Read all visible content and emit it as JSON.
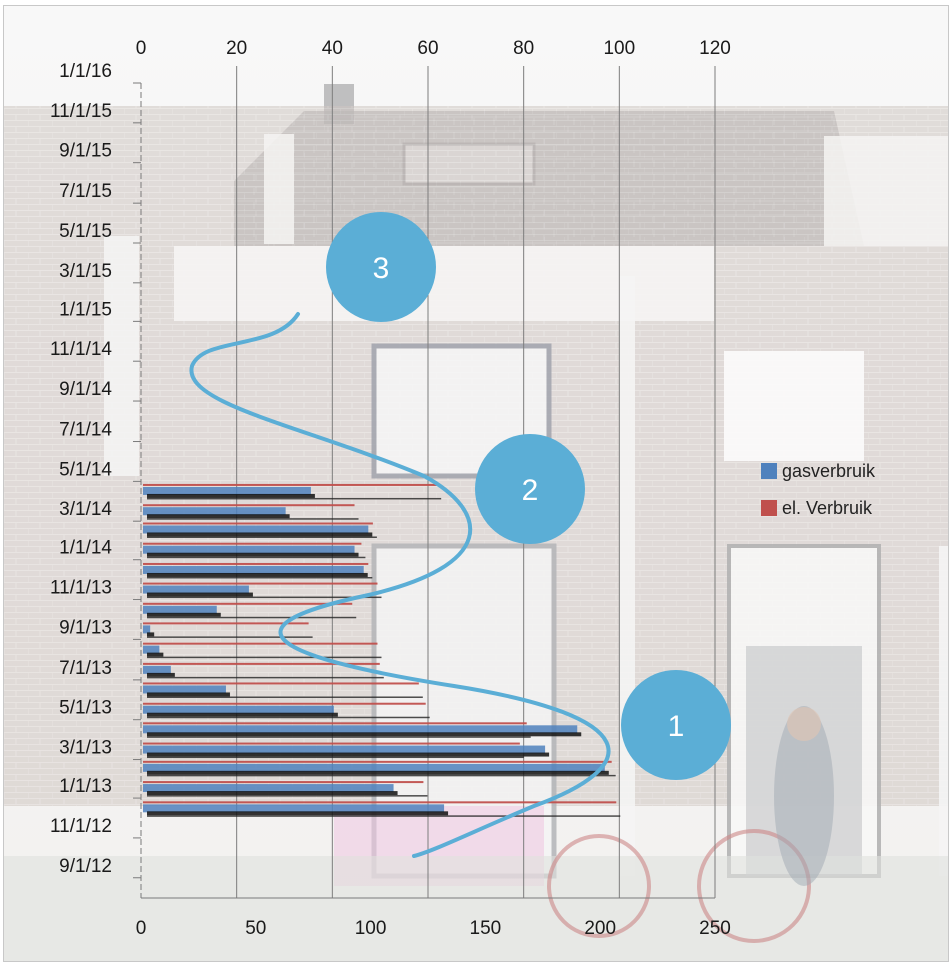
{
  "chart_data": {
    "type": "bar",
    "orientation": "horizontal",
    "background": "photo of a brick row house with a bicycle (faded)",
    "y_axis": {
      "type": "date",
      "tick_labels": [
        "1/1/16",
        "11/1/15",
        "9/1/15",
        "7/1/15",
        "5/1/15",
        "3/1/15",
        "1/1/15",
        "11/1/14",
        "9/1/14",
        "7/1/14",
        "5/1/14",
        "3/1/14",
        "1/1/14",
        "11/1/13",
        "9/1/13",
        "7/1/13",
        "5/1/13",
        "3/1/13",
        "1/1/13",
        "11/1/12",
        "9/1/12"
      ],
      "range": [
        "2012-08-01",
        "2016-01-01"
      ]
    },
    "x_axis_top": {
      "tick_labels": [
        "0",
        "20",
        "40",
        "60",
        "80",
        "100",
        "120"
      ],
      "range": [
        0,
        120
      ],
      "gridlines": true
    },
    "x_axis_bottom": {
      "tick_labels": [
        "0",
        "50",
        "100",
        "150",
        "200",
        "250"
      ],
      "range": [
        0,
        250
      ]
    },
    "legend": {
      "placement": "right",
      "entries": [
        {
          "label": "gasverbruik",
          "color": "#4f81bd"
        },
        {
          "label": "el. Verbruik",
          "color": "#c0504d"
        }
      ]
    },
    "series": [
      {
        "name": "gasverbruik",
        "color": "#4f81bd",
        "x": [
          "2012-12-01",
          "2013-01-01",
          "2013-02-01",
          "2013-03-01",
          "2013-04-01",
          "2013-05-01",
          "2013-06-01",
          "2013-07-01",
          "2013-08-01",
          "2013-09-01",
          "2013-10-01",
          "2013-11-01",
          "2013-12-01",
          "2014-01-01",
          "2014-02-01",
          "2014-03-01",
          "2014-04-01"
        ],
        "values": [
          132,
          110,
          202,
          176,
          190,
          84,
          37,
          13,
          8,
          4,
          33,
          47,
          97,
          93,
          99,
          63,
          74
        ]
      },
      {
        "name": "el. Verbruik",
        "color": "#c0504d",
        "x": [
          "2012-12-01",
          "2013-01-01",
          "2013-02-01",
          "2013-03-01",
          "2013-04-01",
          "2013-05-01",
          "2013-06-01",
          "2013-07-01",
          "2013-08-01",
          "2013-09-01",
          "2013-10-01",
          "2013-11-01",
          "2013-12-01",
          "2014-01-01",
          "2014-02-01",
          "2014-03-01",
          "2014-04-01"
        ],
        "values": [
          207,
          123,
          205,
          165,
          168,
          124,
          121,
          104,
          103,
          73,
          92,
          103,
          99,
          96,
          101,
          93,
          129
        ]
      }
    ],
    "callouts": [
      "1",
      "2",
      "3"
    ],
    "grid": true
  }
}
